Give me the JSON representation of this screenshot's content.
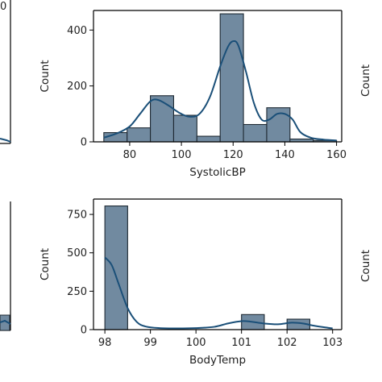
{
  "colors": {
    "bar_fill": "#718aa0",
    "bar_edge": "#1f2a33",
    "kde": "#1a4f78",
    "axis": "#000000"
  },
  "chart_data": [
    {
      "type": "histogram",
      "xlabel": "SystolicBP",
      "ylabel": "Count",
      "xlim": [
        66,
        162
      ],
      "ylim": [
        0,
        470
      ],
      "xticks": [
        80,
        100,
        120,
        140,
        160
      ],
      "yticks": [
        0,
        200,
        400
      ],
      "bins": [
        {
          "x0": 70,
          "x1": 79,
          "count": 33
        },
        {
          "x0": 79,
          "x1": 88,
          "count": 50
        },
        {
          "x0": 88,
          "x1": 97,
          "count": 165
        },
        {
          "x0": 97,
          "x1": 106,
          "count": 95
        },
        {
          "x0": 106,
          "x1": 115,
          "count": 20
        },
        {
          "x0": 115,
          "x1": 124,
          "count": 458
        },
        {
          "x0": 124,
          "x1": 133,
          "count": 62
        },
        {
          "x0": 133,
          "x1": 142,
          "count": 122
        },
        {
          "x0": 142,
          "x1": 151,
          "count": 10
        },
        {
          "x0": 151,
          "x1": 160,
          "count": 5
        }
      ],
      "kde": [
        [
          70,
          15
        ],
        [
          75,
          30
        ],
        [
          80,
          55
        ],
        [
          84,
          100
        ],
        [
          88,
          145
        ],
        [
          91,
          150
        ],
        [
          95,
          130
        ],
        [
          99,
          105
        ],
        [
          103,
          90
        ],
        [
          107,
          100
        ],
        [
          111,
          160
        ],
        [
          115,
          270
        ],
        [
          118,
          340
        ],
        [
          120,
          360
        ],
        [
          122,
          345
        ],
        [
          125,
          250
        ],
        [
          128,
          140
        ],
        [
          131,
          80
        ],
        [
          134,
          80
        ],
        [
          137,
          100
        ],
        [
          140,
          100
        ],
        [
          143,
          80
        ],
        [
          146,
          35
        ],
        [
          150,
          15
        ],
        [
          155,
          8
        ],
        [
          160,
          5
        ]
      ]
    },
    {
      "type": "histogram",
      "xlabel": "BodyTemp",
      "ylabel": "Count",
      "xlim": [
        97.75,
        103.2
      ],
      "ylim": [
        0,
        850
      ],
      "xticks": [
        98,
        99,
        100,
        101,
        102,
        103
      ],
      "yticks": [
        0,
        250,
        500,
        750
      ],
      "bins": [
        {
          "x0": 98,
          "x1": 98.5,
          "count": 805
        },
        {
          "x0": 98.5,
          "x1": 99,
          "count": 0
        },
        {
          "x0": 99,
          "x1": 99.5,
          "count": 0
        },
        {
          "x0": 99.5,
          "x1": 100,
          "count": 0
        },
        {
          "x0": 100,
          "x1": 100.5,
          "count": 0
        },
        {
          "x0": 100.5,
          "x1": 101,
          "count": 0
        },
        {
          "x0": 101,
          "x1": 101.5,
          "count": 98
        },
        {
          "x0": 101.5,
          "x1": 102,
          "count": 0
        },
        {
          "x0": 102,
          "x1": 102.5,
          "count": 68
        },
        {
          "x0": 102.5,
          "x1": 103,
          "count": 0
        }
      ],
      "kde": [
        [
          98,
          470
        ],
        [
          98.15,
          420
        ],
        [
          98.3,
          300
        ],
        [
          98.5,
          140
        ],
        [
          98.7,
          50
        ],
        [
          98.9,
          20
        ],
        [
          99.2,
          10
        ],
        [
          99.6,
          8
        ],
        [
          100,
          10
        ],
        [
          100.4,
          18
        ],
        [
          100.7,
          40
        ],
        [
          101,
          55
        ],
        [
          101.2,
          52
        ],
        [
          101.5,
          40
        ],
        [
          101.8,
          35
        ],
        [
          102.1,
          45
        ],
        [
          102.35,
          40
        ],
        [
          102.6,
          25
        ],
        [
          102.9,
          12
        ],
        [
          103,
          8
        ]
      ]
    }
  ],
  "partial_panels": {
    "left_top_tick": "0",
    "right_top_ylabel": "Count",
    "right_bottom_ylabel": "Count"
  }
}
